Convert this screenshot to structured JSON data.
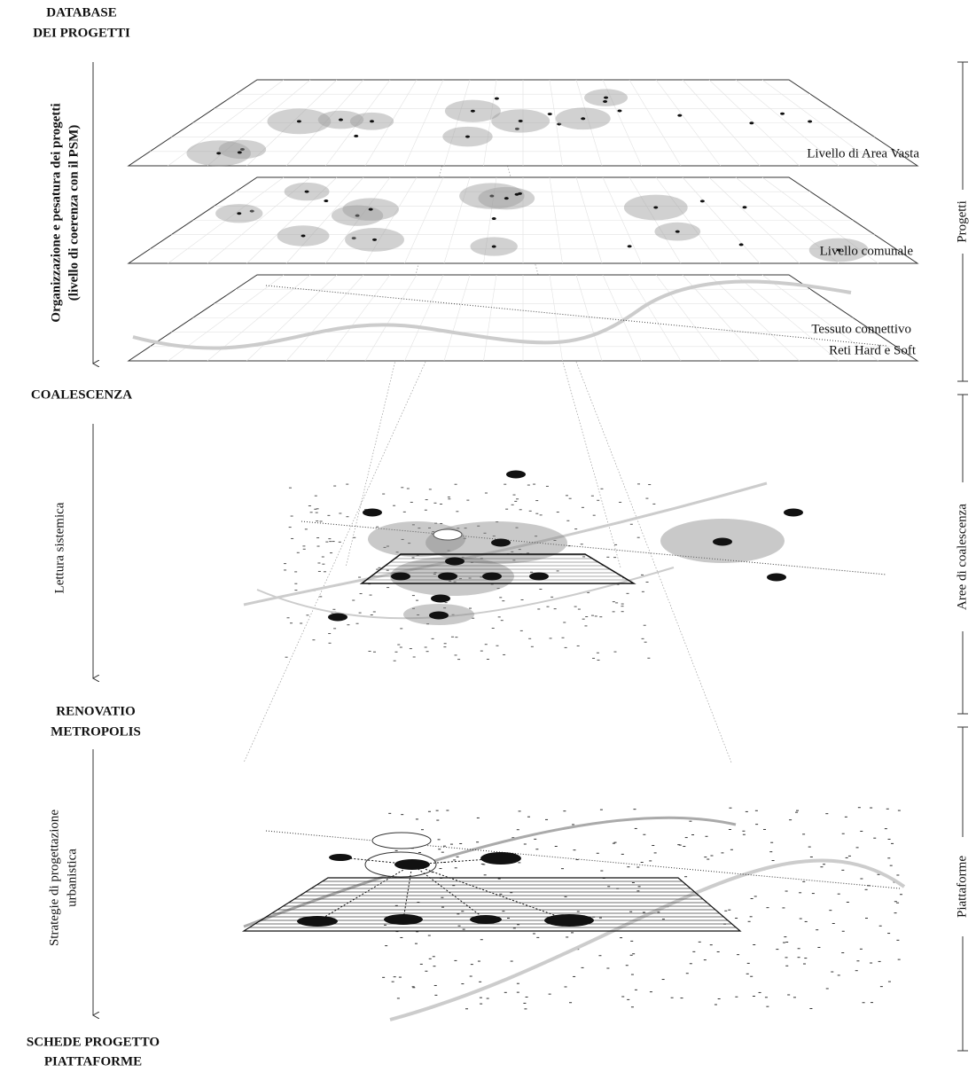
{
  "stages": [
    {
      "lines": [
        "DATABASE",
        "DEI PROGETTI"
      ]
    },
    {
      "lines": [
        "COALESCENZA"
      ]
    },
    {
      "lines": [
        "RENOVATIO",
        "METROPOLIS"
      ]
    },
    {
      "lines": [
        "SCHEDE PROGETTO",
        "PIATTAFORME"
      ]
    }
  ],
  "steps": [
    {
      "lines": [
        "Organizzazione e pesatura dei progetti",
        "(livello di coerenza con il PSM)"
      ]
    },
    {
      "lines": [
        "Lettura sistemica"
      ]
    },
    {
      "lines": [
        "Strategie di progettazione",
        "urbanistica"
      ]
    }
  ],
  "layers": [
    "Livello di Area Vasta",
    "Livello comunale",
    "Tessuto connettivo",
    "Reti Hard e Soft"
  ],
  "sections": [
    "Progetti",
    "Aree di coalescenza",
    "Piattaforme"
  ]
}
